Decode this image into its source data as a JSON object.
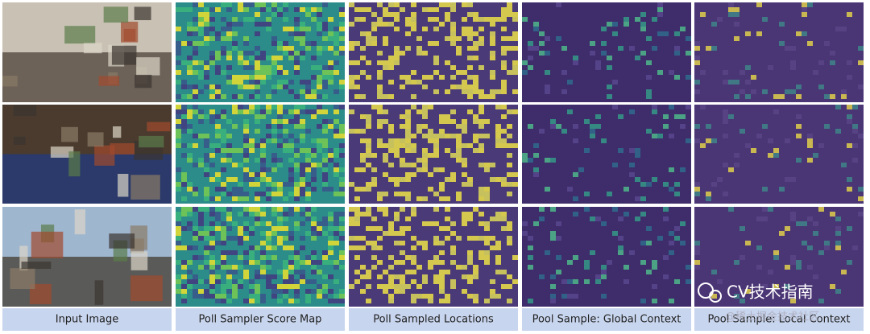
{
  "columns": [
    "Input Image",
    "Poll Sampler Score Map",
    "Poll Sampled Locations",
    "Pool Sample: Global Context",
    "Pool Sample: Local Context"
  ],
  "watermark": {
    "title": "CV技术指南",
    "source": "@稀土掘金技术社区"
  }
}
